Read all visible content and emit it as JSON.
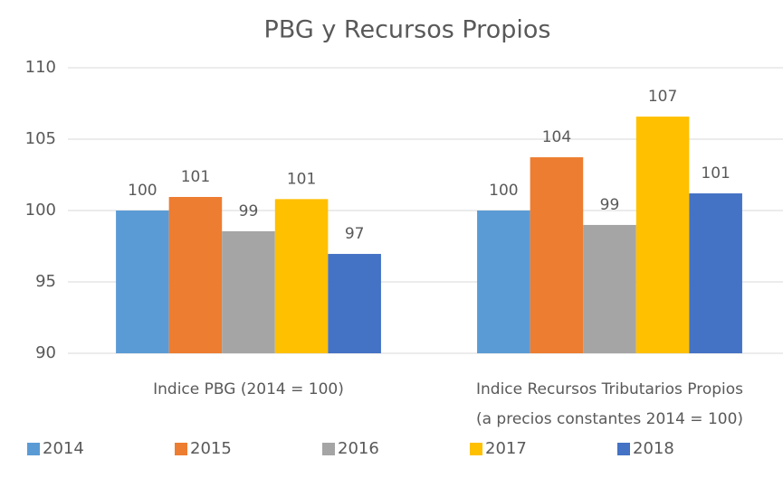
{
  "chart_data": {
    "type": "bar",
    "title": "PBG y Recursos Propios",
    "categories": [
      [
        "Indice PBG (2014 = 100)"
      ],
      [
        "Indice Recursos Tributarios Propios",
        "(a precios constantes 2014 = 100)"
      ]
    ],
    "series": [
      {
        "name": "2014",
        "color": "#5b9bd5",
        "values": [
          100,
          100
        ],
        "value_labels": [
          "100",
          "100"
        ]
      },
      {
        "name": "2015",
        "color": "#ed7d31",
        "values": [
          100.95,
          103.73
        ],
        "value_labels": [
          "101",
          "104"
        ]
      },
      {
        "name": "2016",
        "color": "#a5a5a5",
        "values": [
          98.55,
          98.99
        ],
        "value_labels": [
          "99",
          "99"
        ]
      },
      {
        "name": "2017",
        "color": "#ffc000",
        "values": [
          100.8,
          106.58
        ],
        "value_labels": [
          "101",
          "107"
        ]
      },
      {
        "name": "2018",
        "color": "#4472c4",
        "values": [
          96.96,
          101.2
        ],
        "value_labels": [
          "97",
          "101"
        ]
      }
    ],
    "ylim": [
      90,
      110
    ],
    "yticks": [
      90,
      95,
      100,
      105,
      110
    ],
    "grid": true,
    "legend": "bottom"
  }
}
